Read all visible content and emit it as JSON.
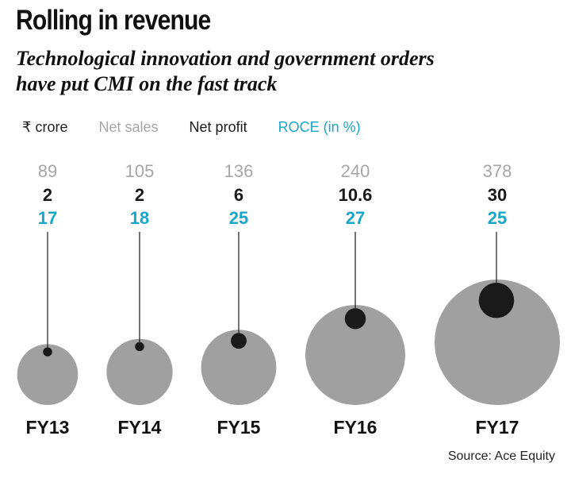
{
  "title": "Rolling in revenue",
  "subtitle_line1": "Technological innovation and government orders",
  "subtitle_line2": "have put CMI on the fast track",
  "legend": {
    "unit": "₹ crore",
    "sales": "Net sales",
    "profit": "Net profit",
    "roce": "ROCE (in %)"
  },
  "source": "Source: Ace Equity",
  "colors": {
    "sales_text": "#a6a6a6",
    "sales_circle": "#a0a0a0",
    "profit": "#1a1a1a",
    "roce": "#1aa6c9"
  },
  "chart_data": {
    "type": "bubble",
    "categories": [
      "FY13",
      "FY14",
      "FY15",
      "FY16",
      "FY17"
    ],
    "series": [
      {
        "name": "Net sales",
        "values": [
          89,
          105,
          136,
          240,
          378
        ]
      },
      {
        "name": "Net profit",
        "values": [
          2,
          2,
          6,
          10.6,
          30
        ]
      },
      {
        "name": "ROCE (in %)",
        "values": [
          17,
          18,
          25,
          27,
          25
        ]
      }
    ],
    "value_labels": {
      "sales": [
        "89",
        "105",
        "136",
        "240",
        "378"
      ],
      "profit": [
        "2",
        "2",
        "6",
        "10.6",
        "30"
      ],
      "roce": [
        "17",
        "18",
        "25",
        "27",
        "25"
      ]
    }
  }
}
